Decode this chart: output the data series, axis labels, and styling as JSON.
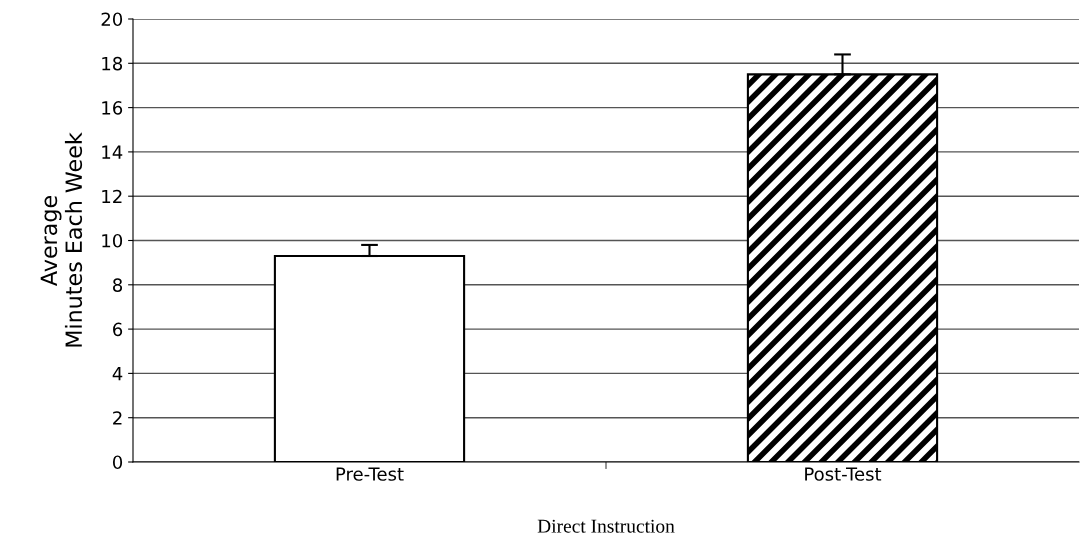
{
  "chart_data": {
    "type": "bar",
    "categories": [
      "Pre-Test",
      "Post-Test"
    ],
    "values": [
      9.3,
      17.5
    ],
    "errors": [
      [
        9.3,
        9.8
      ],
      [
        17.5,
        18.4
      ]
    ],
    "colors": [
      "#ffffff",
      "#000000"
    ],
    "xlabel": "Direct Instruction",
    "ylabel": "Average\nMinutes Each Week",
    "ylim": [
      0,
      20
    ],
    "yticks": [
      0,
      2,
      4,
      6,
      8,
      10,
      12,
      14,
      16,
      18,
      20
    ],
    "grid": "y",
    "legend": false
  }
}
